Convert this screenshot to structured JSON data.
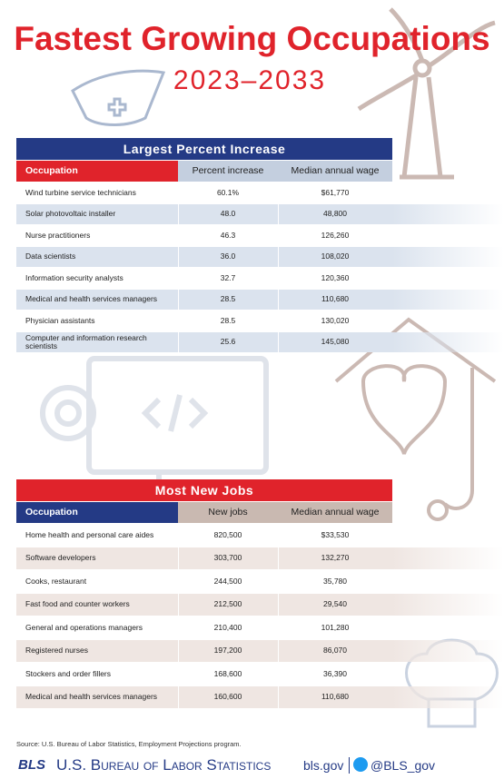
{
  "header": {
    "title": "Fastest Growing Occupations",
    "subtitle": "2023–2033"
  },
  "table1": {
    "title": "Largest Percent Increase",
    "columns": [
      "Occupation",
      "Percent increase",
      "Median annual wage"
    ],
    "rows": [
      [
        "Wind turbine service technicians",
        "60.1%",
        "$61,770"
      ],
      [
        "Solar photovoltaic installer",
        "48.0",
        "48,800"
      ],
      [
        "Nurse practitioners",
        "46.3",
        "126,260"
      ],
      [
        "Data scientists",
        "36.0",
        "108,020"
      ],
      [
        "Information security analysts",
        "32.7",
        "120,360"
      ],
      [
        "Medical and health services managers",
        "28.5",
        "110,680"
      ],
      [
        "Physician assistants",
        "28.5",
        "130,020"
      ],
      [
        "Computer and information research scientists",
        "25.6",
        "145,080"
      ]
    ]
  },
  "table2": {
    "title": "Most New Jobs",
    "columns": [
      "Occupation",
      "New jobs",
      "Median annual wage"
    ],
    "rows": [
      [
        "Home health and personal care aides",
        "820,500",
        "$33,530"
      ],
      [
        "Software developers",
        "303,700",
        "132,270"
      ],
      [
        "Cooks, restaurant",
        "244,500",
        "35,780"
      ],
      [
        "Fast food and counter workers",
        "212,500",
        "29,540"
      ],
      [
        "General and operations managers",
        "210,400",
        "101,280"
      ],
      [
        "Registered nurses",
        "197,200",
        "86,070"
      ],
      [
        "Stockers and order fillers",
        "168,600",
        "36,390"
      ],
      [
        "Medical and health services managers",
        "160,600",
        "110,680"
      ]
    ]
  },
  "source": "Source: U.S. Bureau of Labor Statistics, Employment Projections program.",
  "footer": {
    "logo": "BLS",
    "agency": "U.S. Bureau of Labor Statistics",
    "site": "bls.gov",
    "handle": "@BLS_gov"
  }
}
